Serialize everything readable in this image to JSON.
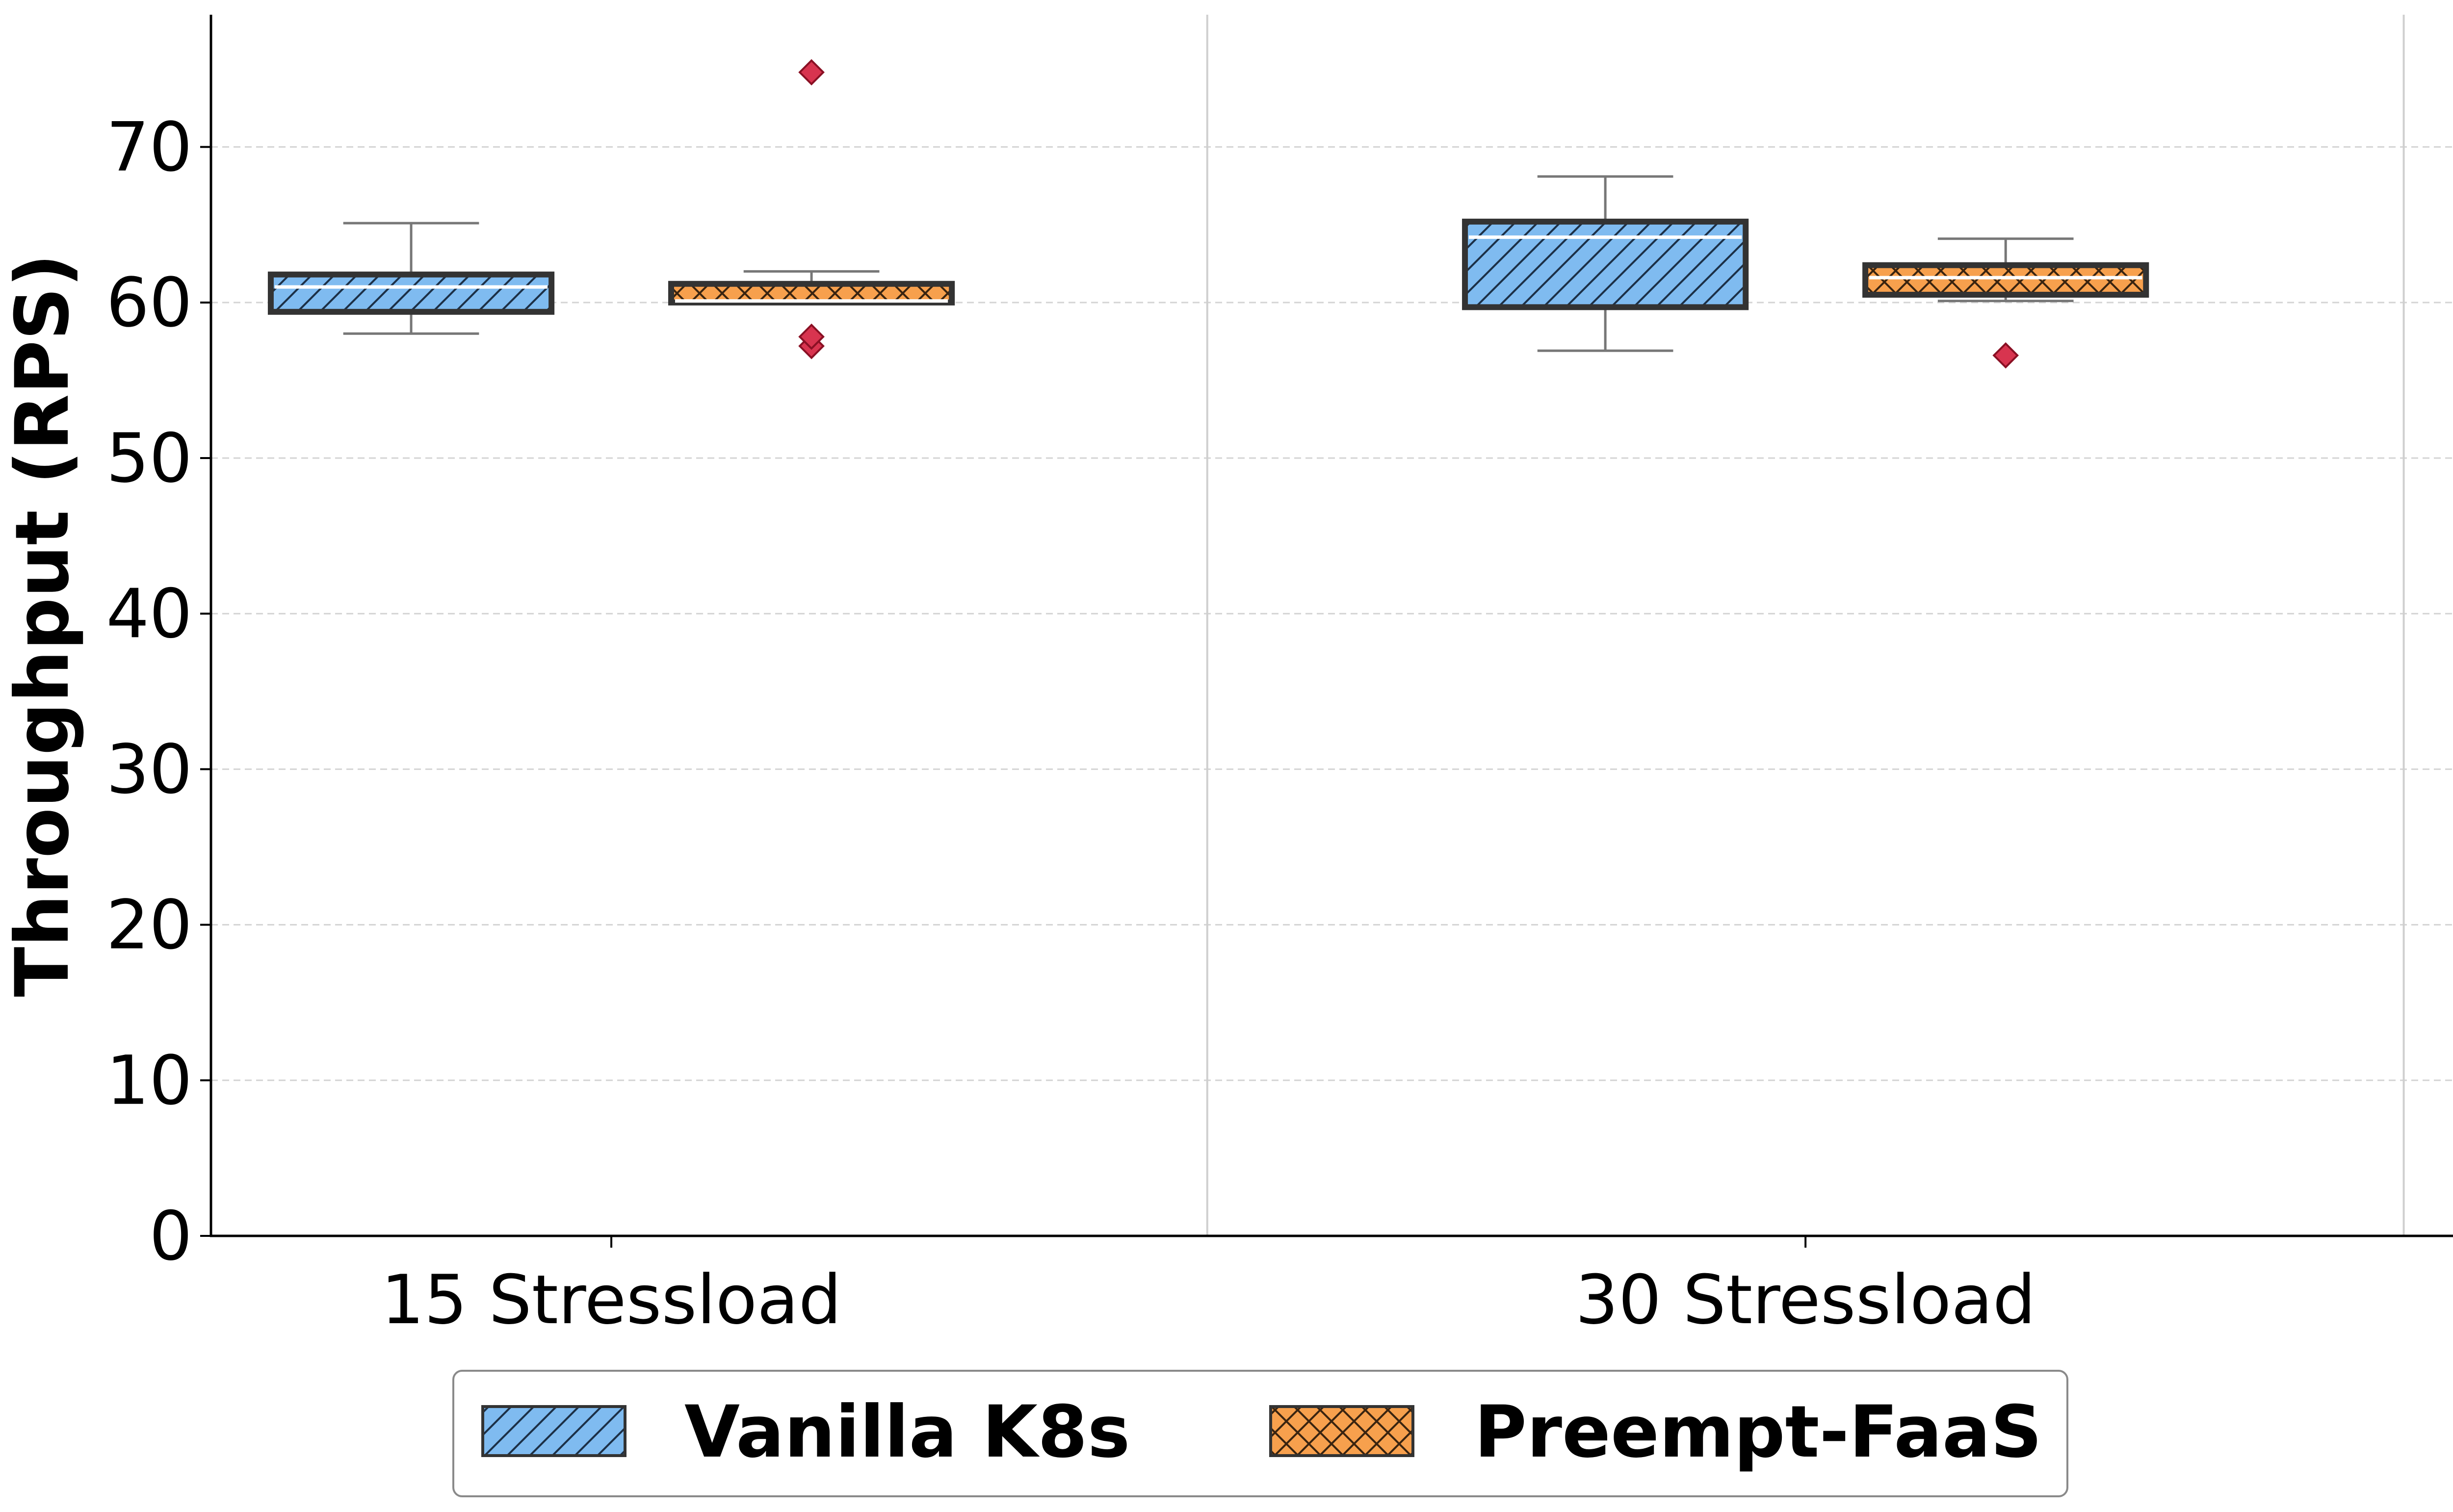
{
  "chart_data": {
    "type": "box",
    "ylabel": "Throughput (RPS)",
    "xlabel": "",
    "title": "",
    "ylim": [
      0,
      78.5
    ],
    "yticks": [
      0,
      10,
      20,
      30,
      40,
      50,
      60,
      70
    ],
    "grid": "horizontal dashed",
    "categories": [
      "15 Stressload",
      "30 Stressload"
    ],
    "legend_position": "bottom-center",
    "series": [
      {
        "name": "Vanilla K8s",
        "color": "#7fbbf0",
        "hatch": "diagonal",
        "boxes": [
          {
            "whisker_low": 58.0,
            "q1": 59.4,
            "median": 61.0,
            "q3": 61.8,
            "whisker_high": 65.1,
            "outliers": []
          },
          {
            "whisker_low": 56.9,
            "q1": 59.7,
            "median": 64.2,
            "q3": 65.2,
            "whisker_high": 68.1,
            "outliers": []
          }
        ]
      },
      {
        "name": "Preempt-FaaS",
        "color": "#f7a04d",
        "hatch": "crosshatch",
        "boxes": [
          {
            "whisker_low": 60.0,
            "q1": 60.0,
            "median": 60.1,
            "q3": 61.2,
            "whisker_high": 62.0,
            "outliers": [
              57.2,
              57.8,
              74.8
            ]
          },
          {
            "whisker_low": 60.1,
            "q1": 60.5,
            "median": 61.6,
            "q3": 62.4,
            "whisker_high": 64.1,
            "outliers": [
              56.6
            ]
          }
        ]
      }
    ]
  }
}
